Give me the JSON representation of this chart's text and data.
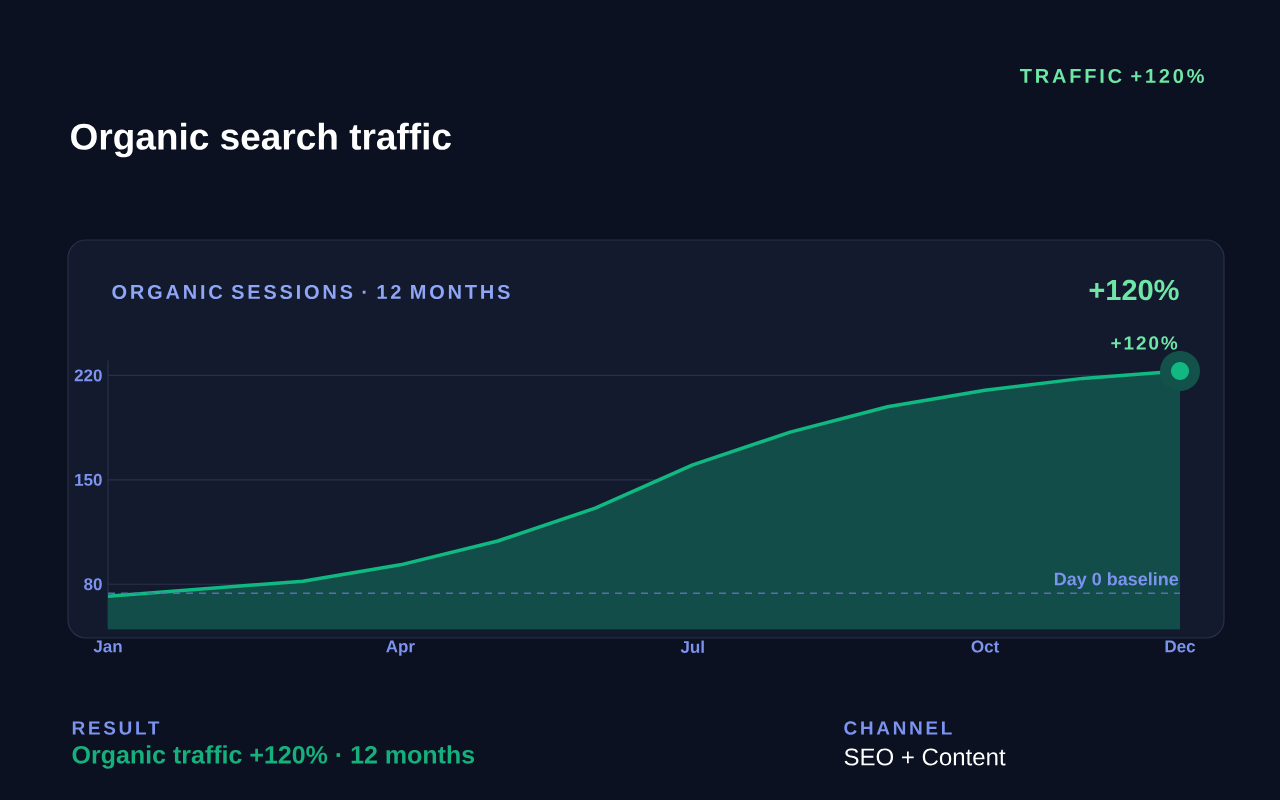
{
  "chart_data": {
    "type": "area",
    "title": "Organic search traffic",
    "subtitle": "ORGANIC SESSIONS · 12 MONTHS",
    "categories": [
      "Jan",
      null,
      null,
      "Apr",
      null,
      null,
      "Jul",
      null,
      null,
      "Oct",
      null,
      "Dec"
    ],
    "series": [
      {
        "color": "#10b981",
        "values": [
          72,
          77,
          82,
          93,
          109,
          131,
          160,
          182,
          199,
          210,
          218,
          223
        ]
      }
    ],
    "ylim": [
      50,
      230
    ],
    "yticks": [
      80,
      150,
      220
    ],
    "grid": "y",
    "ref_lines": [
      {
        "axis": "y",
        "value": 74,
        "label": "Day 0 baseline",
        "color": "#5B6FAE",
        "line_style": "dashed"
      }
    ],
    "annotations": [
      "TRAFFIC +120%",
      "+120%",
      {
        "text": "+120%",
        "x": "Dec",
        "y": 223
      },
      "RESULT",
      "Organic traffic +120% · 12 months",
      "CHANNEL",
      "SEO + Content"
    ]
  }
}
